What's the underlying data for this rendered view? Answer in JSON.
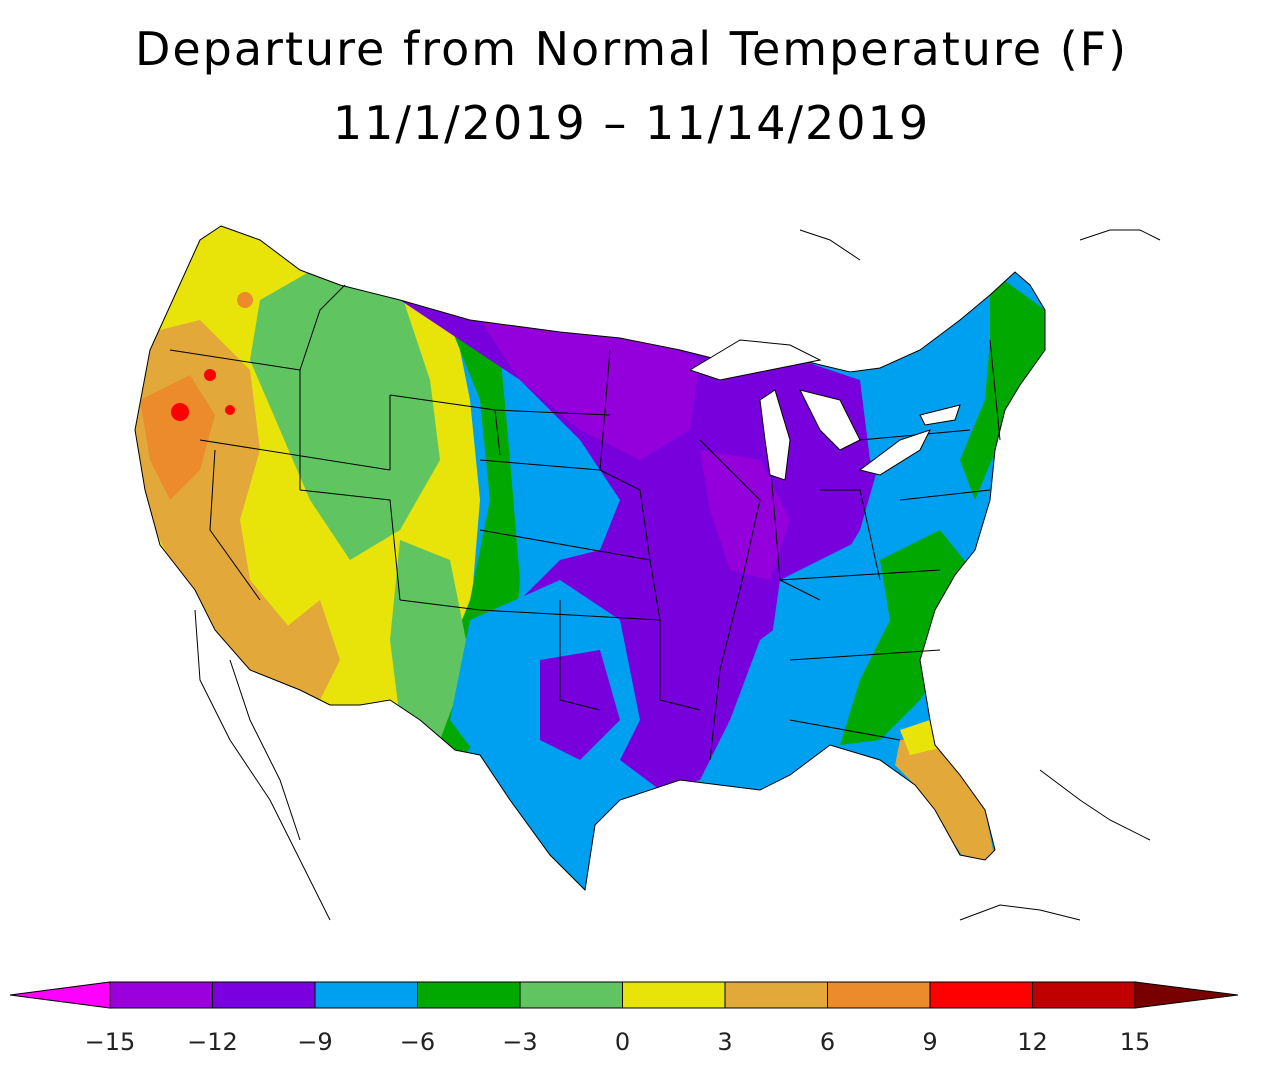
{
  "title": {
    "line1": "Departure from Normal Temperature (F)",
    "line2": "11/1/2019 – 11/14/2019"
  },
  "map": {
    "region": "Contiguous United States",
    "variable": "Departure from normal temperature",
    "unit": "F",
    "regions": [
      {
        "name": "northern-california-oregon-coast",
        "category": "6 to 9",
        "color": "#ec8b2c"
      },
      {
        "name": "california-nevada",
        "category": "3 to 6",
        "color": "#e2a83a"
      },
      {
        "name": "pacific-northwest-inland",
        "category": "0 to 3",
        "color": "#e8e40a"
      },
      {
        "name": "great-basin-rockies",
        "category": "-3 to 0",
        "color": "#60c460"
      },
      {
        "name": "southwest-arizona",
        "category": "3 to 6",
        "color": "#e2a83a"
      },
      {
        "name": "high-plains",
        "category": "-6 to -3",
        "color": "#00a800"
      },
      {
        "name": "central-plains",
        "category": "-9 to -6",
        "color": "#00a0f0"
      },
      {
        "name": "upper-midwest",
        "category": "-15 to -12",
        "color": "#9400dc"
      },
      {
        "name": "midwest-mississippi-valley",
        "category": "-12 to -9",
        "color": "#7800dc"
      },
      {
        "name": "southern-plains-texas",
        "category": "-9 to -6",
        "color": "#00a0f0"
      },
      {
        "name": "northeast",
        "category": "-9 to -6",
        "color": "#00a0f0"
      },
      {
        "name": "new-england-southeast",
        "category": "-6 to -3",
        "color": "#00a800"
      },
      {
        "name": "florida-peninsula",
        "category": "3 to 6",
        "color": "#e2a83a"
      },
      {
        "name": "hot-spots-west",
        "category": "9 to 12",
        "color": "#ff0000"
      }
    ]
  },
  "legend": {
    "ticks": [
      "−15",
      "−12",
      "−9",
      "−6",
      "−3",
      "0",
      "3",
      "6",
      "9",
      "12",
      "15"
    ],
    "low_arrow_color": "#ff00ff",
    "high_arrow_color": "#780000",
    "bins": [
      {
        "color": "#9a00dc"
      },
      {
        "color": "#7a00e0"
      },
      {
        "color": "#00a0f0"
      },
      {
        "color": "#00a800"
      },
      {
        "color": "#60c460"
      },
      {
        "color": "#e8e40a"
      },
      {
        "color": "#e2a83a"
      },
      {
        "color": "#ec8b2c"
      },
      {
        "color": "#ff0000"
      },
      {
        "color": "#c00000"
      }
    ]
  }
}
